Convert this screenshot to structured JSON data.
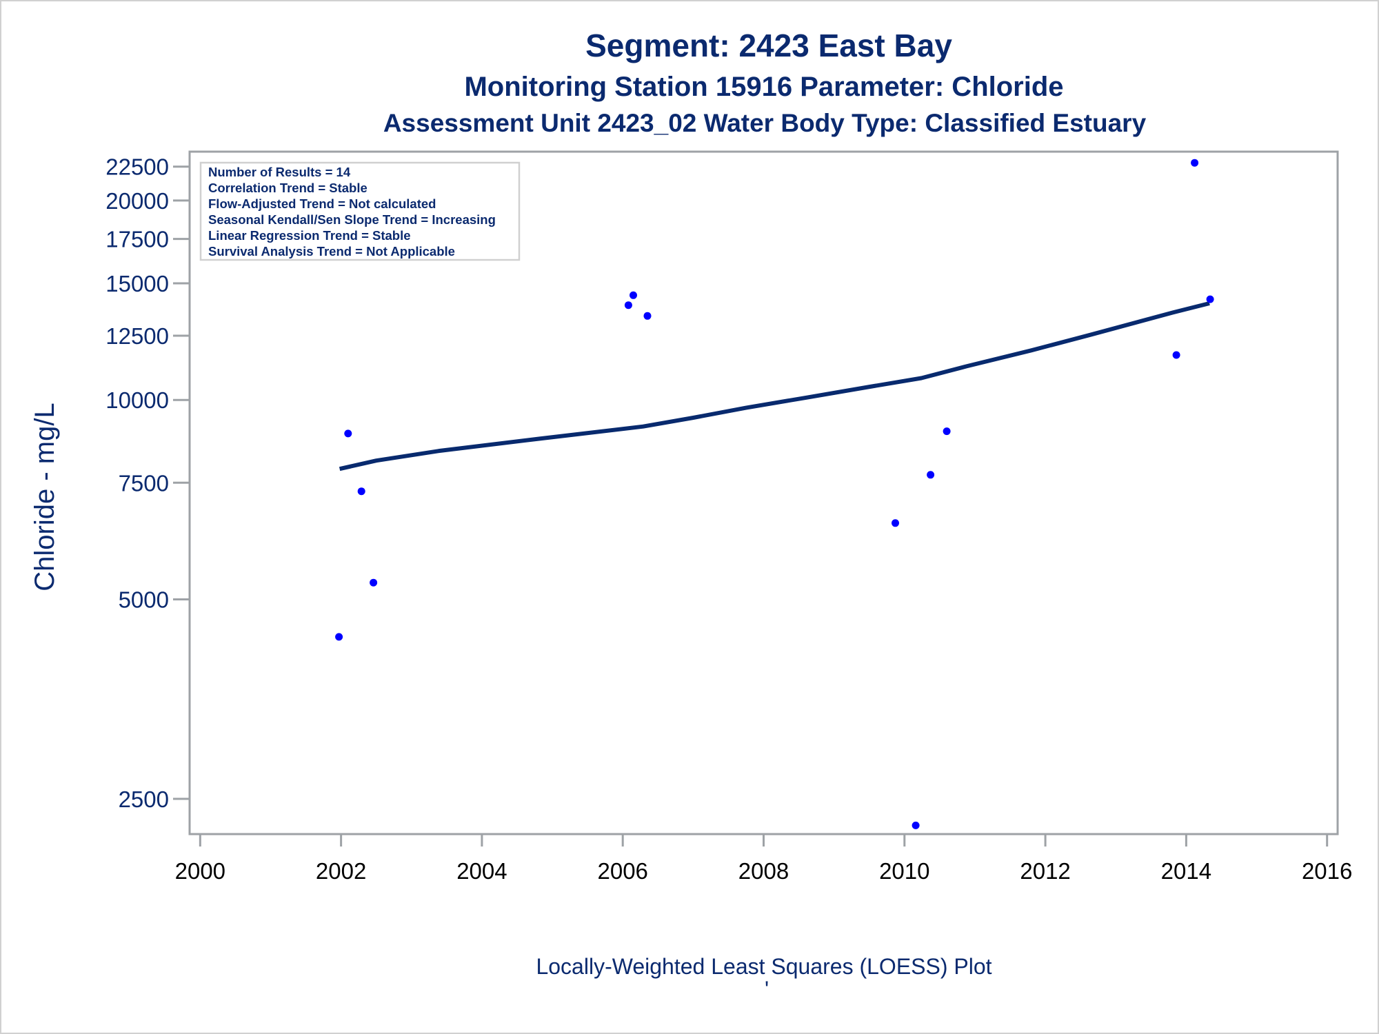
{
  "titles": {
    "line1": "Segment: 2423  East Bay",
    "line2": "Monitoring Station 15916 Parameter: Chloride",
    "line3": "Assessment Unit 2423_02   Water Body Type: Classified Estuary"
  },
  "footnote": {
    "text": "Locally-Weighted Least Squares (LOESS) Plot",
    "mark": "'"
  },
  "legend": {
    "entries": [
      "Number of Results = 14",
      "Correlation Trend = Stable",
      "Flow-Adjusted Trend = Not calculated",
      "Seasonal Kendall/Sen Slope Trend = Increasing",
      "Linear Regression Trend = Stable",
      "Survival Analysis Trend = Not Applicable"
    ]
  },
  "colors": {
    "text_navy": "#0b2a6f",
    "point_blue": "#0000ff",
    "loess_line": "#082a6e",
    "axis_gray": "#9ea2a6",
    "legend_border": "#d0d0d0"
  },
  "chart_data": {
    "type": "scatter",
    "title": "Segment: 2423  East Bay",
    "subtitle": [
      "Monitoring Station 15916 Parameter: Chloride",
      "Assessment Unit 2423_02   Water Body Type: Classified Estuary"
    ],
    "xlabel": "",
    "ylabel": "Chloride - mg/L",
    "yscale": "log",
    "xlim": [
      1999.85,
      2016.15
    ],
    "ylim": [
      2212,
      23700
    ],
    "grid": false,
    "legend_placement": "top-left",
    "xticks": [
      2000,
      2002,
      2004,
      2006,
      2008,
      2010,
      2012,
      2014,
      2016
    ],
    "xtick_labels": [
      "2000",
      "2002",
      "2004",
      "2006",
      "2008",
      "2010",
      "2012",
      "2014",
      "2016"
    ],
    "yticks": [
      2500,
      5000,
      7500,
      10000,
      12500,
      15000,
      17500,
      20000,
      22500
    ],
    "ytick_labels": [
      "2500",
      "5000",
      "7500",
      "10000",
      "12500",
      "15000",
      "17500",
      "20000",
      "22500"
    ],
    "series": [
      {
        "name": "Chloride results",
        "kind": "scatter",
        "points": [
          {
            "x": 2001.97,
            "y": 4390
          },
          {
            "x": 2002.1,
            "y": 8900
          },
          {
            "x": 2002.29,
            "y": 7280
          },
          {
            "x": 2002.46,
            "y": 5300
          },
          {
            "x": 2006.08,
            "y": 13900
          },
          {
            "x": 2006.15,
            "y": 14390
          },
          {
            "x": 2006.35,
            "y": 13390
          },
          {
            "x": 2009.87,
            "y": 6520
          },
          {
            "x": 2010.16,
            "y": 2280
          },
          {
            "x": 2010.37,
            "y": 7710
          },
          {
            "x": 2010.6,
            "y": 8970
          },
          {
            "x": 2013.86,
            "y": 11690
          },
          {
            "x": 2014.12,
            "y": 22800
          },
          {
            "x": 2014.34,
            "y": 14190
          }
        ]
      },
      {
        "name": "LOESS fit",
        "kind": "line",
        "points": [
          {
            "x": 2001.98,
            "y": 7870
          },
          {
            "x": 2002.5,
            "y": 8100
          },
          {
            "x": 2003.4,
            "y": 8380
          },
          {
            "x": 2004.82,
            "y": 8740
          },
          {
            "x": 2006.29,
            "y": 9120
          },
          {
            "x": 2007.0,
            "y": 9400
          },
          {
            "x": 2007.75,
            "y": 9730
          },
          {
            "x": 2008.6,
            "y": 10080
          },
          {
            "x": 2009.51,
            "y": 10470
          },
          {
            "x": 2010.24,
            "y": 10790
          },
          {
            "x": 2010.88,
            "y": 11240
          },
          {
            "x": 2011.8,
            "y": 11880
          },
          {
            "x": 2012.64,
            "y": 12540
          },
          {
            "x": 2013.81,
            "y": 13550
          },
          {
            "x": 2014.33,
            "y": 13990
          }
        ]
      }
    ],
    "annotations": [
      "Number of Results = 14",
      "Correlation Trend = Stable",
      "Flow-Adjusted Trend = Not calculated",
      "Seasonal Kendall/Sen Slope Trend = Increasing",
      "Linear Regression Trend = Stable",
      "Survival Analysis Trend = Not Applicable"
    ],
    "footnote": "Locally-Weighted Least Squares (LOESS) Plot"
  }
}
